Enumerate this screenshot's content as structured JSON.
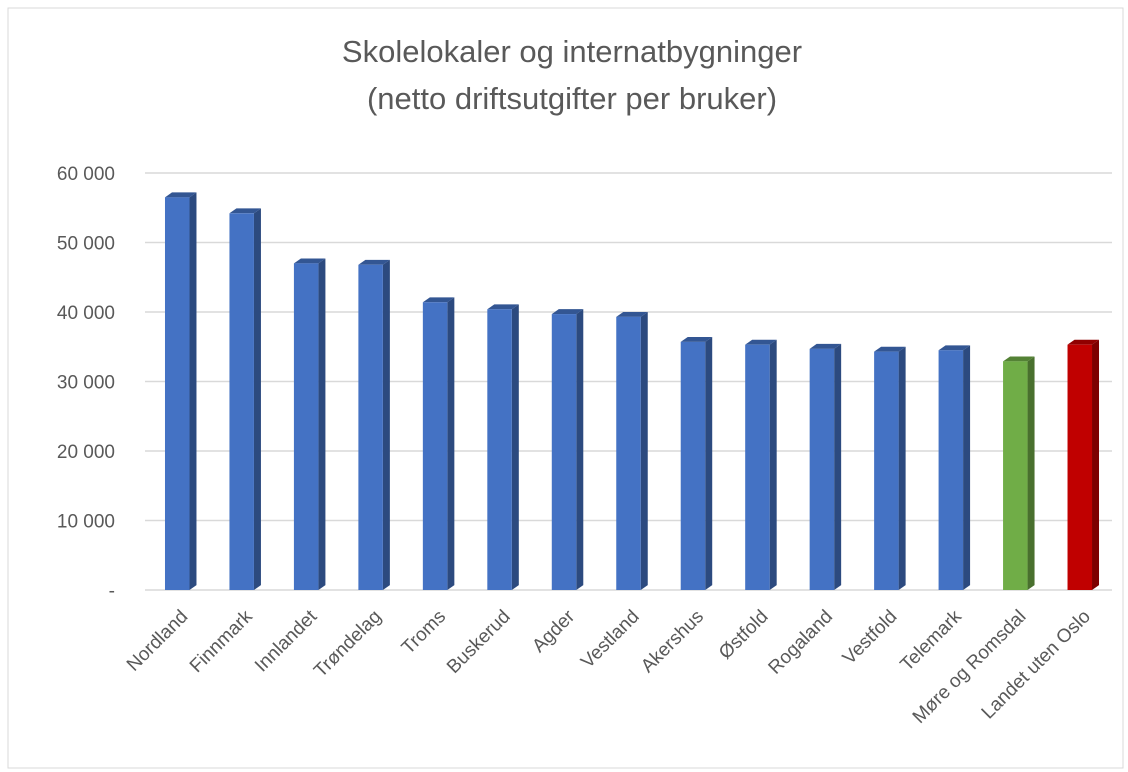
{
  "chart_data": {
    "type": "bar",
    "title": [
      "Skolelokaler og internatbygninger",
      "(netto driftsutgifter per bruker)"
    ],
    "categories": [
      "Nordland",
      "Finnmark",
      "Innlandet",
      "Trøndelag",
      "Troms",
      "Buskerud",
      "Agder",
      "Vestland",
      "Akershus",
      "Østfold",
      "Rogaland",
      "Vestfold",
      "Telemark",
      "Møre og Romsdal",
      "Landet uten Oslo"
    ],
    "values": [
      56500,
      54200,
      47000,
      46800,
      41400,
      40400,
      39700,
      39300,
      35700,
      35300,
      34700,
      34300,
      34500,
      32900,
      35300
    ],
    "colors": [
      "#4472c4",
      "#4472c4",
      "#4472c4",
      "#4472c4",
      "#4472c4",
      "#4472c4",
      "#4472c4",
      "#4472c4",
      "#4472c4",
      "#4472c4",
      "#4472c4",
      "#4472c4",
      "#4472c4",
      "#70ad47",
      "#c00000"
    ],
    "ylim": [
      0,
      60000
    ],
    "yticks": [
      {
        "value": 0,
        "label": "-"
      },
      {
        "value": 10000,
        "label": "10 000"
      },
      {
        "value": 20000,
        "label": "20 000"
      },
      {
        "value": 30000,
        "label": "30 000"
      },
      {
        "value": 40000,
        "label": "40 000"
      },
      {
        "value": 50000,
        "label": "50 000"
      },
      {
        "value": 60000,
        "label": "60 000"
      }
    ],
    "grid": true
  }
}
